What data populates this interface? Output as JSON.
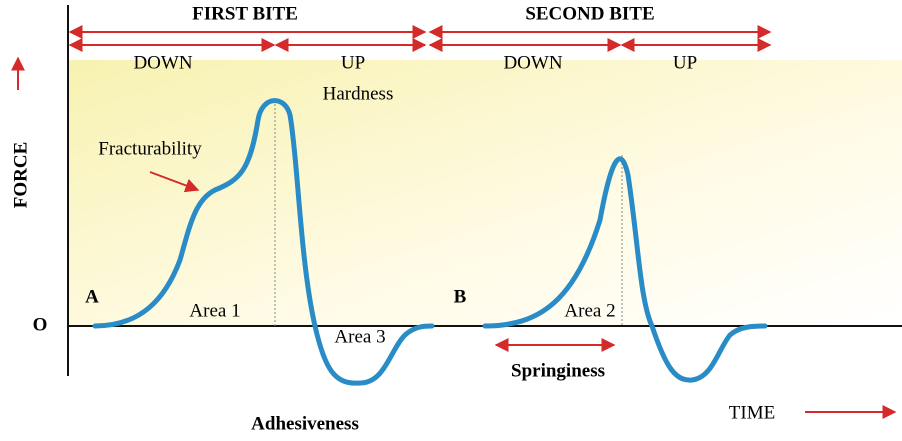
{
  "labels": {
    "first_bite": "FIRST BITE",
    "second_bite": "SECOND BITE",
    "down_1": "DOWN",
    "up_1": "UP",
    "down_2": "DOWN",
    "up_2": "UP",
    "hardness": "Hardness",
    "fracturability": "Fracturability",
    "force": "FORCE",
    "origin": "O",
    "point_a": "A",
    "point_b": "B",
    "area_1": "Area 1",
    "area_2": "Area 2",
    "area_3": "Area 3",
    "adhesiveness": "Adhesiveness",
    "springiness": "Springiness",
    "time": "TIME"
  }
}
